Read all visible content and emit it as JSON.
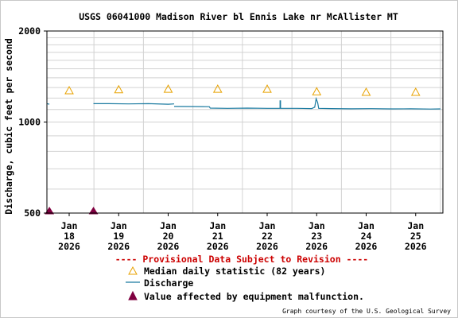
{
  "chart_data": {
    "type": "line",
    "title": "USGS 06041000 Madison River bl Ennis Lake nr McAllister MT",
    "ylabel": "Discharge, cubic feet per second",
    "xlabel": "",
    "y_scale": "log",
    "ylim": [
      500,
      2000
    ],
    "y_ticks": [
      {
        "value": 500,
        "label": "500"
      },
      {
        "value": 1000,
        "label": "1000"
      },
      {
        "value": 2000,
        "label": "2000"
      }
    ],
    "x_ticks": [
      {
        "day": 18,
        "month": "Jan",
        "date": "18",
        "year": "2026"
      },
      {
        "day": 19,
        "month": "Jan",
        "date": "19",
        "year": "2026"
      },
      {
        "day": 20,
        "month": "Jan",
        "date": "20",
        "year": "2026"
      },
      {
        "day": 21,
        "month": "Jan",
        "date": "21",
        "year": "2026"
      },
      {
        "day": 22,
        "month": "Jan",
        "date": "22",
        "year": "2026"
      },
      {
        "day": 23,
        "month": "Jan",
        "date": "23",
        "year": "2026"
      },
      {
        "day": 24,
        "month": "Jan",
        "date": "24",
        "year": "2026"
      },
      {
        "day": 25,
        "month": "Jan",
        "date": "25",
        "year": "2026"
      }
    ],
    "xlim_days": [
      17.55,
      25.55
    ],
    "grid": true,
    "series": [
      {
        "name": "Discharge",
        "color": "#1a7aa0",
        "segments": [
          [
            [
              17.55,
              1150
            ],
            [
              17.6,
              1145
            ]
          ],
          [
            [
              18.49,
              1150
            ],
            [
              18.8,
              1150
            ],
            [
              19.2,
              1148
            ],
            [
              19.6,
              1150
            ],
            [
              20.0,
              1145
            ],
            [
              20.12,
              1148
            ]
          ],
          [
            [
              20.12,
              1126
            ],
            [
              20.5,
              1125
            ],
            [
              20.83,
              1124
            ],
            [
              20.85,
              1112
            ],
            [
              21.2,
              1110
            ],
            [
              21.6,
              1112
            ],
            [
              22.0,
              1110
            ],
            [
              22.26,
              1110
            ],
            [
              22.26,
              1175
            ],
            [
              22.27,
              1175
            ],
            [
              22.27,
              1110
            ],
            [
              22.6,
              1110
            ],
            [
              22.9,
              1108
            ],
            [
              22.96,
              1120
            ],
            [
              22.99,
              1195
            ],
            [
              23.02,
              1160
            ],
            [
              23.04,
              1110
            ],
            [
              23.3,
              1108
            ],
            [
              23.7,
              1106
            ],
            [
              24.1,
              1107
            ],
            [
              24.5,
              1105
            ],
            [
              24.9,
              1106
            ],
            [
              25.3,
              1104
            ],
            [
              25.5,
              1105
            ]
          ]
        ]
      },
      {
        "name": "Median daily statistic (82 years)",
        "color": "#e8a200",
        "points": [
          [
            18,
            1270
          ],
          [
            19,
            1280
          ],
          [
            20,
            1285
          ],
          [
            21,
            1285
          ],
          [
            22,
            1285
          ],
          [
            23,
            1260
          ],
          [
            24,
            1255
          ],
          [
            25,
            1255
          ]
        ]
      },
      {
        "name": "Value affected by equipment malfunction.",
        "color": "#800040",
        "points": [
          [
            17.6,
            500
          ],
          [
            18.49,
            500
          ]
        ]
      }
    ],
    "provisional_notice": "---- Provisional Data Subject to Revision ----",
    "legend": [
      {
        "key": "median",
        "label": "Median daily statistic (82 years)"
      },
      {
        "key": "discharge",
        "label": "Discharge"
      },
      {
        "key": "malfunction",
        "label": "Value affected by equipment malfunction."
      }
    ],
    "credit": "Graph courtesy of the U.S. Geological Survey"
  },
  "colors": {
    "grid": "#d2d2d2",
    "axis": "#000000",
    "notice": "#cc0000"
  }
}
